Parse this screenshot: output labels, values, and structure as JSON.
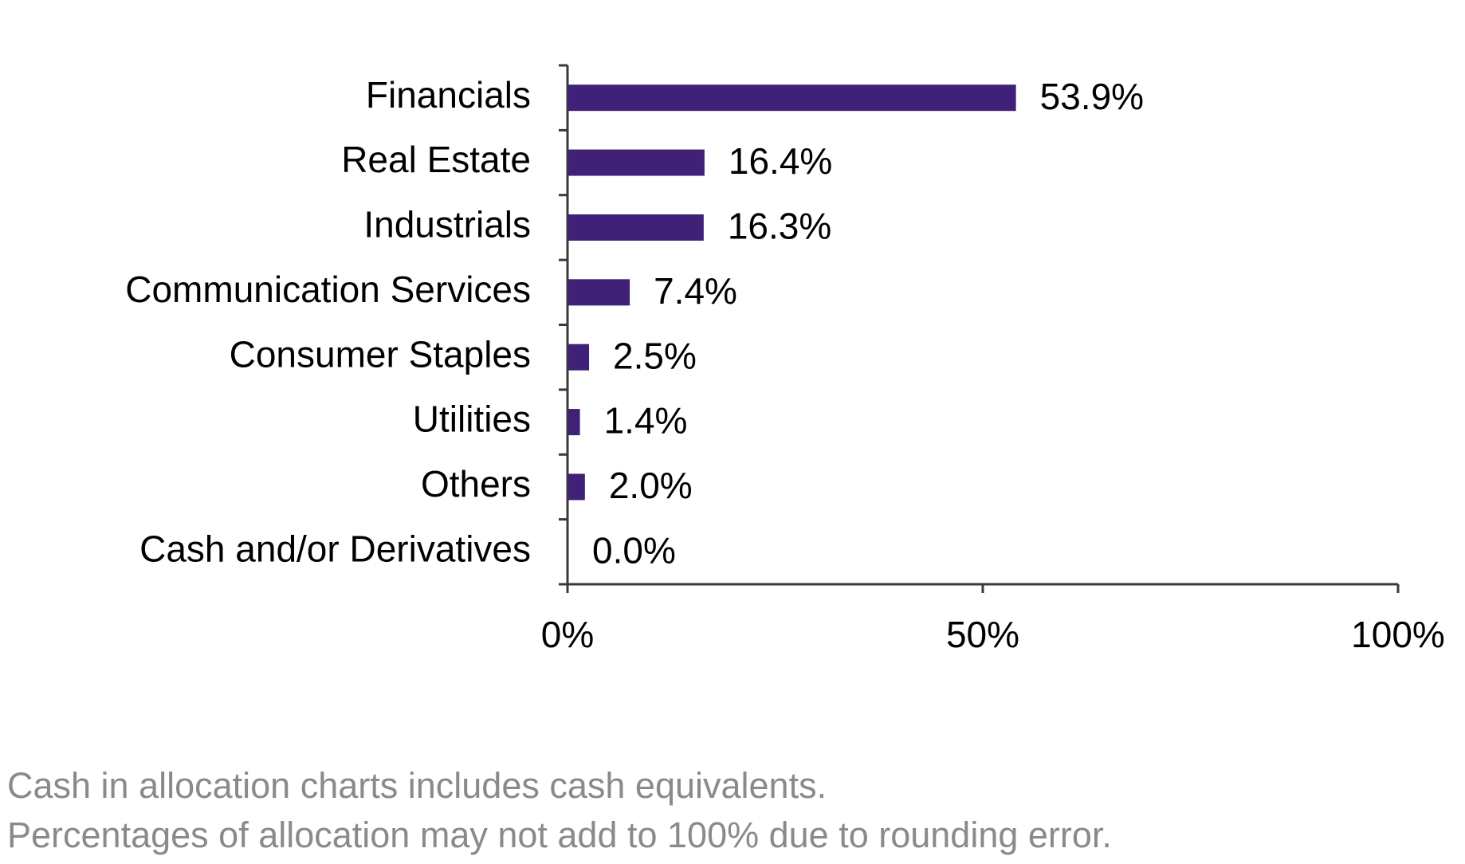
{
  "chart_data": {
    "type": "bar",
    "orientation": "horizontal",
    "categories": [
      "Financials",
      "Real Estate",
      "Industrials",
      "Communication Services",
      "Consumer Staples",
      "Utilities",
      "Others",
      "Cash and/or Derivatives"
    ],
    "values": [
      53.9,
      16.4,
      16.3,
      7.4,
      2.5,
      1.4,
      2.0,
      0.0
    ],
    "data_labels": [
      "53.9%",
      "16.4%",
      "16.3%",
      "7.4%",
      "2.5%",
      "1.4%",
      "2.0%",
      "0.0%"
    ],
    "xlim": [
      0,
      100
    ],
    "x_ticks": [
      0,
      50,
      100
    ],
    "x_tick_labels": [
      "0%",
      "50%",
      "100%"
    ],
    "grid": false,
    "bar_color": "#3f2177",
    "axis_color": "#3a3a3a"
  },
  "footnotes": [
    "Cash in allocation charts includes cash equivalents.",
    "Percentages of allocation may not add to 100% due to rounding error."
  ]
}
